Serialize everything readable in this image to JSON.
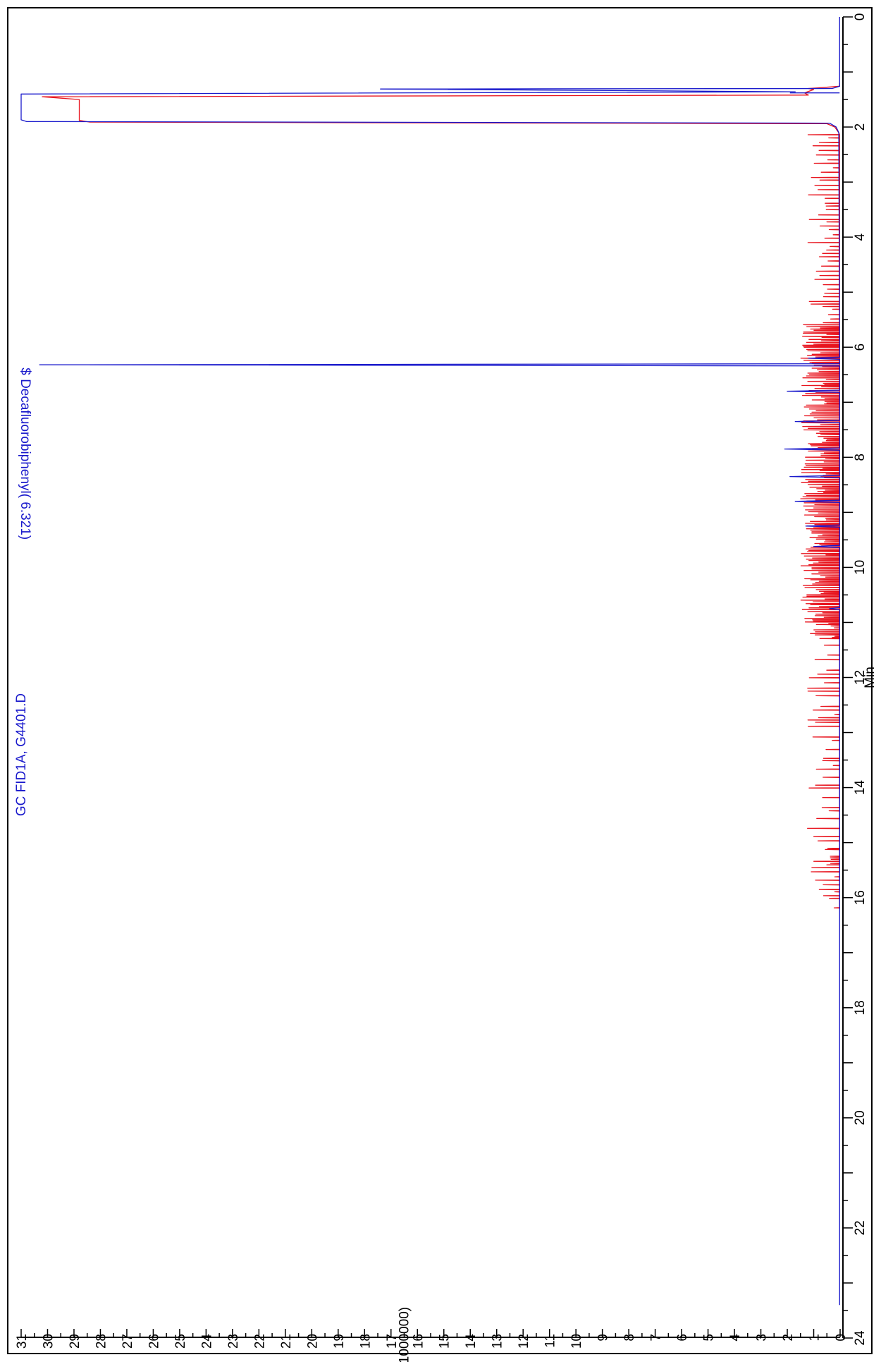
{
  "chart_data": {
    "type": "line",
    "title": "GC FID1A, G4401.D",
    "xlabel": "Min",
    "ylabel": "Y ( X1000000)",
    "xlim": [
      0,
      24
    ],
    "ylim": [
      0,
      31
    ],
    "x_ticks": [
      "0",
      "2",
      "4",
      "6",
      "8",
      "10",
      "12",
      "14",
      "16",
      "18",
      "20",
      "22",
      "24"
    ],
    "y_ticks": [
      "0",
      "1",
      "2",
      "3",
      "4",
      "5",
      "6",
      "7",
      "8",
      "9",
      "10",
      "11",
      "12",
      "13",
      "14",
      "15",
      "16",
      "17",
      "18",
      "19",
      "20",
      "21",
      "22",
      "23",
      "24",
      "25",
      "26",
      "27",
      "28",
      "29",
      "30",
      "31"
    ],
    "annotations": [
      {
        "text": "$ Decafluorobiphenyl( 6.321)",
        "x": 6.32,
        "y": 30.3
      }
    ],
    "grid": false,
    "colors": {
      "blue": "#1a1acc",
      "red": "#e8141e",
      "axis": "#000000"
    },
    "series": [
      {
        "color": "#1a1acc",
        "baseline": 0.02,
        "x_start": 0.0,
        "x_end": 23.4,
        "solvent": {
          "x": [
            1.26,
            1.3,
            1.31,
            1.36,
            1.4,
            1.44,
            1.87,
            1.9,
            1.93,
            2.0,
            2.1
          ],
          "y": [
            0.02,
            0.3,
            17.4,
            1.7,
            31.0,
            31.0,
            31.0,
            30.8,
            0.4,
            0.15,
            0.05
          ]
        },
        "peaks": [
          {
            "x": 1.38,
            "y": 1.9
          },
          {
            "x": 6.2,
            "y": 1.2
          },
          {
            "x": 6.32,
            "y": 30.3
          },
          {
            "x": 6.8,
            "y": 2.0
          },
          {
            "x": 7.35,
            "y": 1.7
          },
          {
            "x": 7.85,
            "y": 2.1
          },
          {
            "x": 8.35,
            "y": 1.9
          },
          {
            "x": 8.8,
            "y": 1.7
          },
          {
            "x": 9.25,
            "y": 1.3
          },
          {
            "x": 9.62,
            "y": 1.0
          },
          {
            "x": 10.75,
            "y": 0.4
          }
        ]
      },
      {
        "color": "#e8141e",
        "baseline": 0.02,
        "x_start": 1.2,
        "x_end": 16.2,
        "solvent": {
          "x": [
            1.26,
            1.3,
            1.32,
            1.38,
            1.42,
            1.45,
            1.5,
            1.88,
            1.91,
            1.94,
            2.0,
            2.1
          ],
          "y": [
            0.02,
            1.2,
            1.0,
            1.35,
            1.2,
            30.2,
            28.8,
            28.8,
            28.4,
            0.5,
            0.2,
            0.06
          ]
        },
        "spike_region": [
          2.1,
          16.2
        ],
        "spike_height_range": [
          0.2,
          1.3
        ]
      }
    ]
  }
}
